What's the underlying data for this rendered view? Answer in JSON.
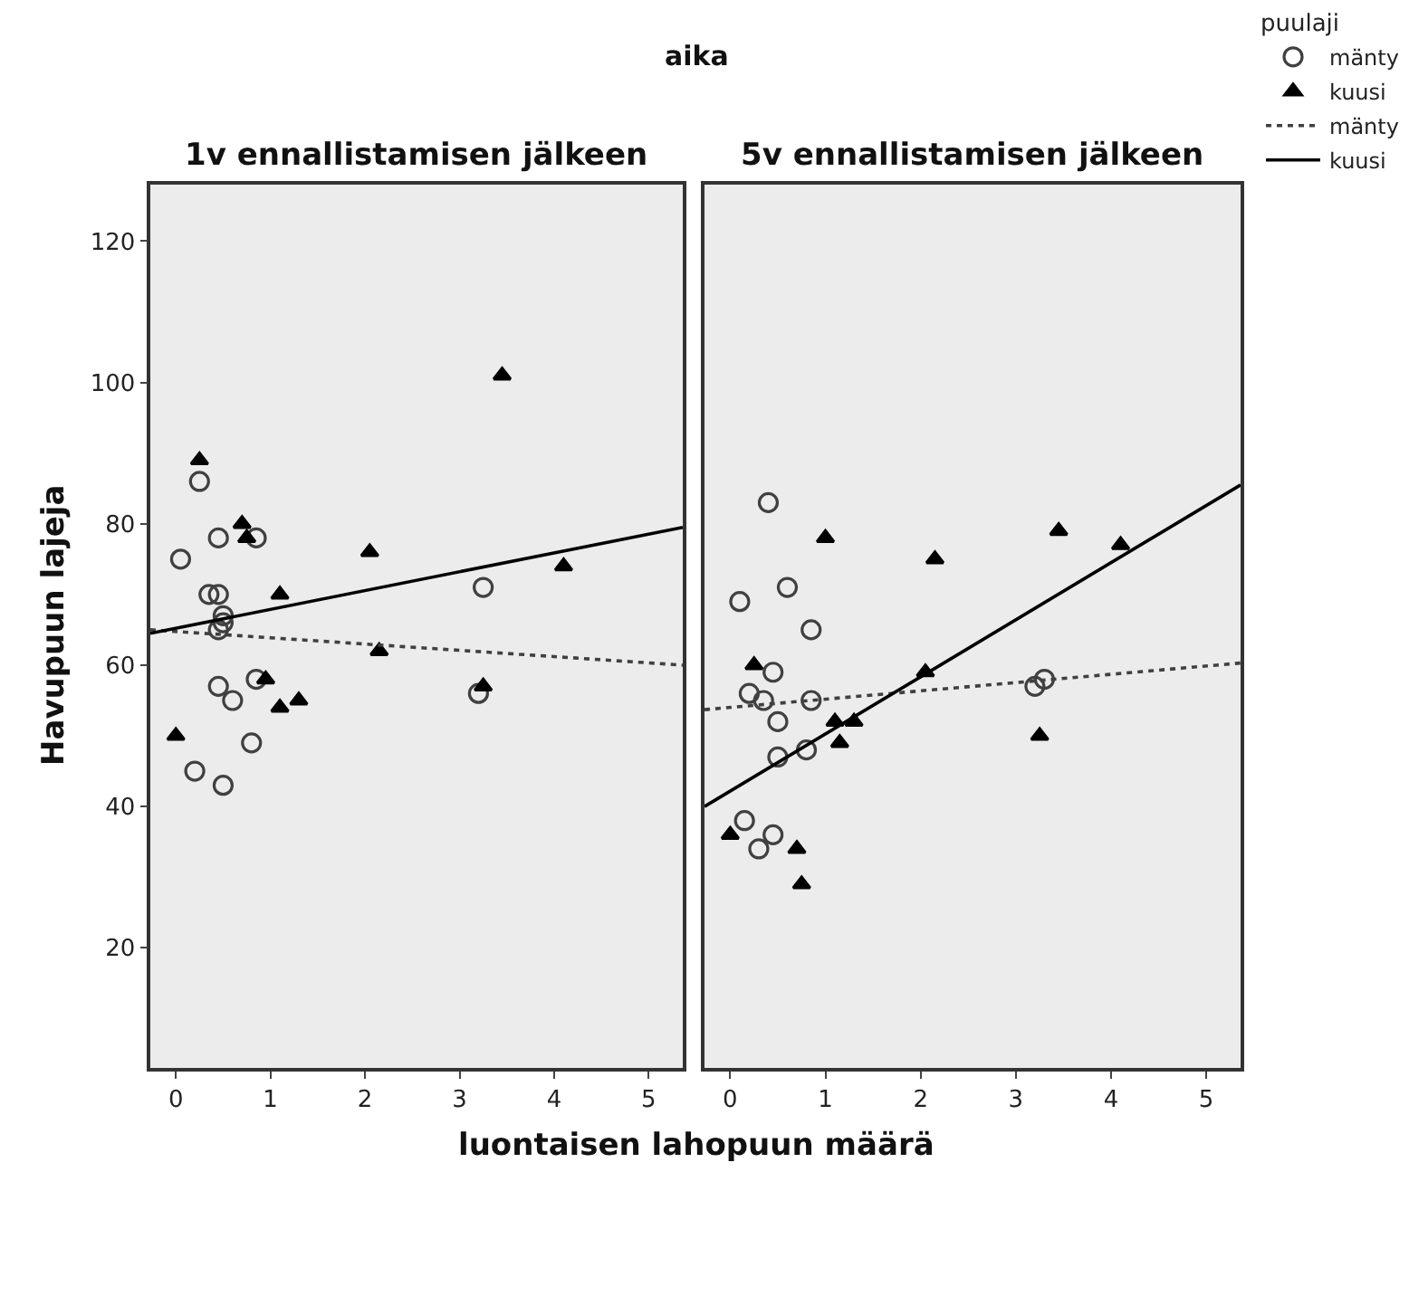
{
  "chart_data": [
    {
      "type": "scatter",
      "title": "1v ennallistamisen jälkeen",
      "annotations": [
        "aika"
      ],
      "xlabel": "luontaisen lahopuun määrä",
      "ylabel": "Havupuun lajeja",
      "legend_title": "puulaji",
      "legend": "top right",
      "grid": false,
      "xlim": [
        -0.27,
        5.36
      ],
      "xticks": [
        0,
        1,
        2,
        3,
        4,
        5
      ],
      "ylim": [
        3,
        128
      ],
      "yticks": [
        20,
        40,
        60,
        80,
        100,
        120
      ],
      "series": [
        {
          "name": "mänty",
          "marker": "circle",
          "color": "#404040",
          "x": [
            0.05,
            0.25,
            0.35,
            0.45,
            0.45,
            0.85,
            0.45,
            0.5,
            0.5,
            0.85,
            0.6,
            0.45,
            0.8,
            0.2,
            0.5,
            3.25,
            3.2
          ],
          "values": [
            75,
            86,
            70,
            70,
            78,
            78,
            65,
            67,
            66,
            58,
            55,
            57,
            49,
            45,
            43,
            71,
            56
          ]
        },
        {
          "name": "kuusi",
          "marker": "triangle",
          "color": "#000000",
          "x": [
            0.25,
            0.7,
            0.75,
            1.1,
            2.05,
            4.1,
            3.45,
            0.95,
            1.1,
            1.3,
            2.15,
            3.25,
            0
          ],
          "values": [
            89,
            80,
            78,
            70,
            76,
            74,
            101,
            58,
            54,
            55,
            62,
            57,
            50
          ]
        },
        {
          "name": "mänty",
          "type": "line",
          "line_style": "dotted",
          "color": "#404040",
          "x": [
            -0.27,
            5.36
          ],
          "values": [
            65,
            60
          ]
        },
        {
          "name": "kuusi",
          "type": "line",
          "line_style": "solid",
          "color": "#000000",
          "x": [
            -0.27,
            5.36
          ],
          "values": [
            64.5,
            79.5
          ]
        }
      ]
    },
    {
      "type": "scatter",
      "title": "5v ennallistamisen jälkeen",
      "tick_labels": "x",
      "grid": false,
      "xlim": [
        -0.27,
        5.36
      ],
      "xticks": [
        0,
        1,
        2,
        3,
        4,
        5
      ],
      "ylim": [
        3,
        128
      ],
      "yticks": [
        20,
        40,
        60,
        80,
        100,
        120
      ],
      "series": [
        {
          "name": "mänty",
          "marker": "circle",
          "color": "#404040",
          "x": [
            0.1,
            0.4,
            0.6,
            0.85,
            0.2,
            0.35,
            0.45,
            0.5,
            0.5,
            0.85,
            0.8,
            0.15,
            0.3,
            0.45,
            3.2,
            3.3
          ],
          "values": [
            69,
            83,
            71,
            65,
            56,
            55,
            59,
            52,
            47,
            55,
            48,
            38,
            34,
            36,
            57,
            58
          ]
        },
        {
          "name": "kuusi",
          "marker": "triangle",
          "color": "#000000",
          "x": [
            0.25,
            1.0,
            2.15,
            3.45,
            4.1,
            2.05,
            1.1,
            1.3,
            1.15,
            3.25,
            0,
            0.7,
            0.75
          ],
          "values": [
            60,
            78,
            75,
            79,
            77,
            59,
            52,
            52,
            49,
            50,
            36,
            34,
            29
          ]
        },
        {
          "name": "mänty",
          "type": "line",
          "line_style": "dotted",
          "color": "#404040",
          "x": [
            -0.27,
            5.36
          ],
          "values": [
            53.7,
            60.3
          ]
        },
        {
          "name": "kuusi",
          "type": "line",
          "line_style": "solid",
          "color": "#000000",
          "x": [
            -0.27,
            5.36
          ],
          "values": [
            40,
            85.5
          ]
        }
      ]
    }
  ]
}
